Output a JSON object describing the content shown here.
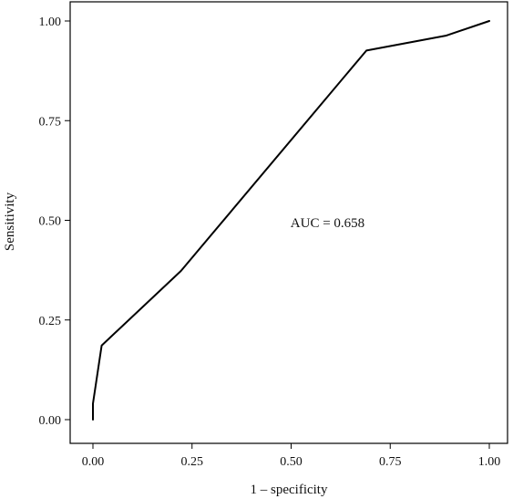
{
  "chart_data": {
    "type": "line",
    "title": "",
    "xlabel": "1 – specificity",
    "ylabel": "Sensitivity",
    "xlim": [
      0,
      1
    ],
    "ylim": [
      0,
      1
    ],
    "grid": false,
    "x_ticks": [
      0,
      0.25,
      0.5,
      0.75,
      1
    ],
    "x_tick_labels": [
      "0.00",
      "0.25",
      "0.50",
      "0.75",
      "1.00"
    ],
    "y_ticks": [
      0,
      0.25,
      0.5,
      0.75,
      1
    ],
    "y_tick_labels": [
      "0.00",
      "0.25",
      "0.50",
      "0.75",
      "1.00"
    ],
    "series": [
      {
        "x": [
          0,
          0,
          0.022,
          0.222,
          0.69,
          0.89,
          1
        ],
        "y": [
          0,
          0.04,
          0.186,
          0.373,
          0.926,
          0.963,
          1
        ]
      }
    ],
    "annotations": [
      {
        "text": "AUC = 0.658",
        "x": 0.5,
        "y": 0.48
      }
    ],
    "colors": {
      "line": "#000000",
      "axis": "#000000",
      "text": "#111111"
    }
  }
}
